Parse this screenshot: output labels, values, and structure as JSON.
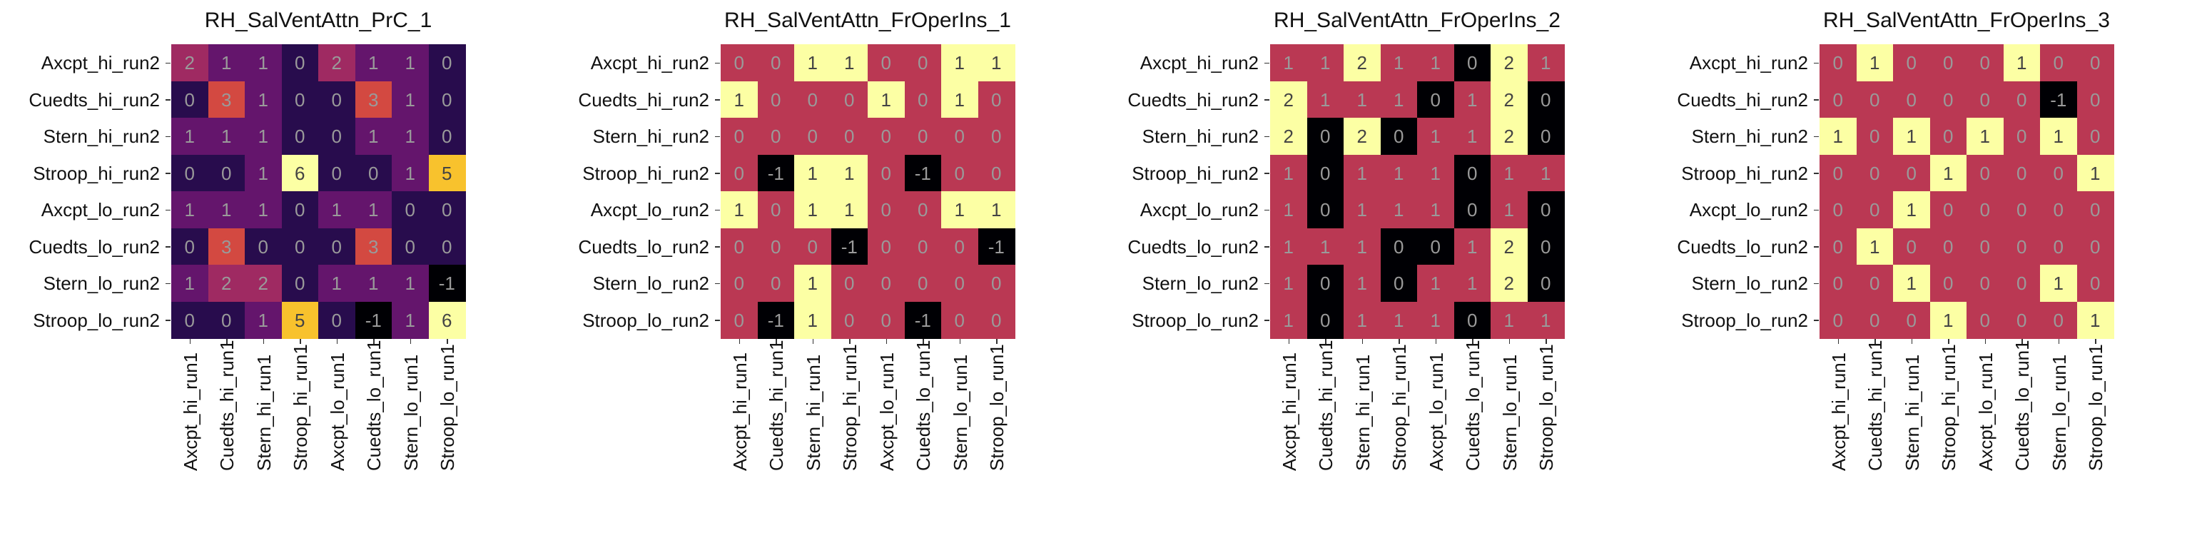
{
  "chart_data": [
    {
      "type": "heatmap",
      "title": "RH_SalVentAttn_PrC_1",
      "rows": [
        "Axcpt_hi_run2",
        "Cuedts_hi_run2",
        "Stern_hi_run2",
        "Stroop_hi_run2",
        "Axcpt_lo_run2",
        "Cuedts_lo_run2",
        "Stern_lo_run2",
        "Stroop_lo_run2"
      ],
      "cols": [
        "Axcpt_hi_run1",
        "Cuedts_hi_run1",
        "Stern_hi_run1",
        "Stroop_hi_run1",
        "Axcpt_lo_run1",
        "Cuedts_lo_run1",
        "Stern_lo_run1",
        "Stroop_lo_run1"
      ],
      "values": [
        [
          2,
          1,
          1,
          0,
          2,
          1,
          1,
          0
        ],
        [
          0,
          3,
          1,
          0,
          0,
          3,
          1,
          0
        ],
        [
          1,
          1,
          1,
          0,
          0,
          1,
          1,
          0
        ],
        [
          0,
          0,
          1,
          6,
          0,
          0,
          1,
          5
        ],
        [
          1,
          1,
          1,
          0,
          1,
          1,
          0,
          0
        ],
        [
          0,
          3,
          0,
          0,
          0,
          3,
          0,
          0
        ],
        [
          1,
          2,
          2,
          0,
          1,
          1,
          1,
          -1
        ],
        [
          0,
          0,
          1,
          5,
          0,
          -1,
          1,
          6
        ]
      ],
      "vmin": -1,
      "vmax": 6
    },
    {
      "type": "heatmap",
      "title": "RH_SalVentAttn_FrOperIns_1",
      "rows": [
        "Axcpt_hi_run2",
        "Cuedts_hi_run2",
        "Stern_hi_run2",
        "Stroop_hi_run2",
        "Axcpt_lo_run2",
        "Cuedts_lo_run2",
        "Stern_lo_run2",
        "Stroop_lo_run2"
      ],
      "cols": [
        "Axcpt_hi_run1",
        "Cuedts_hi_run1",
        "Stern_hi_run1",
        "Stroop_hi_run1",
        "Axcpt_lo_run1",
        "Cuedts_lo_run1",
        "Stern_lo_run1",
        "Stroop_lo_run1"
      ],
      "values": [
        [
          0,
          0,
          1,
          1,
          0,
          0,
          1,
          1
        ],
        [
          1,
          0,
          0,
          0,
          1,
          0,
          1,
          0
        ],
        [
          0,
          0,
          0,
          0,
          0,
          0,
          0,
          0
        ],
        [
          0,
          -1,
          1,
          1,
          0,
          -1,
          0,
          0
        ],
        [
          1,
          0,
          1,
          1,
          0,
          0,
          1,
          1
        ],
        [
          0,
          0,
          0,
          -1,
          0,
          0,
          0,
          -1
        ],
        [
          0,
          0,
          1,
          0,
          0,
          0,
          0,
          0
        ],
        [
          0,
          -1,
          1,
          0,
          0,
          -1,
          0,
          0
        ]
      ],
      "vmin": -1,
      "vmax": 1
    },
    {
      "type": "heatmap",
      "title": "RH_SalVentAttn_FrOperIns_2",
      "rows": [
        "Axcpt_hi_run2",
        "Cuedts_hi_run2",
        "Stern_hi_run2",
        "Stroop_hi_run2",
        "Axcpt_lo_run2",
        "Cuedts_lo_run2",
        "Stern_lo_run2",
        "Stroop_lo_run2"
      ],
      "cols": [
        "Axcpt_hi_run1",
        "Cuedts_hi_run1",
        "Stern_hi_run1",
        "Stroop_hi_run1",
        "Axcpt_lo_run1",
        "Cuedts_lo_run1",
        "Stern_lo_run1",
        "Stroop_lo_run1"
      ],
      "values": [
        [
          1,
          1,
          2,
          1,
          1,
          0,
          2,
          1
        ],
        [
          2,
          1,
          1,
          1,
          0,
          1,
          2,
          0
        ],
        [
          2,
          0,
          2,
          0,
          1,
          1,
          2,
          0
        ],
        [
          1,
          0,
          1,
          1,
          1,
          0,
          1,
          1
        ],
        [
          1,
          0,
          1,
          1,
          1,
          0,
          1,
          0
        ],
        [
          1,
          1,
          1,
          0,
          0,
          1,
          2,
          0
        ],
        [
          1,
          0,
          1,
          0,
          1,
          1,
          2,
          0
        ],
        [
          1,
          0,
          1,
          1,
          1,
          0,
          1,
          1
        ]
      ],
      "vmin": 0,
      "vmax": 2
    },
    {
      "type": "heatmap",
      "title": "RH_SalVentAttn_FrOperIns_3",
      "rows": [
        "Axcpt_hi_run2",
        "Cuedts_hi_run2",
        "Stern_hi_run2",
        "Stroop_hi_run2",
        "Axcpt_lo_run2",
        "Cuedts_lo_run2",
        "Stern_lo_run2",
        "Stroop_lo_run2"
      ],
      "cols": [
        "Axcpt_hi_run1",
        "Cuedts_hi_run1",
        "Stern_hi_run1",
        "Stroop_hi_run1",
        "Axcpt_lo_run1",
        "Cuedts_lo_run1",
        "Stern_lo_run1",
        "Stroop_lo_run1"
      ],
      "values": [
        [
          0,
          1,
          0,
          0,
          0,
          1,
          0,
          0
        ],
        [
          0,
          0,
          0,
          0,
          0,
          0,
          -1,
          0
        ],
        [
          1,
          0,
          1,
          0,
          1,
          0,
          1,
          0
        ],
        [
          0,
          0,
          0,
          1,
          0,
          0,
          0,
          1
        ],
        [
          0,
          0,
          1,
          0,
          0,
          0,
          0,
          0
        ],
        [
          0,
          1,
          0,
          0,
          0,
          0,
          0,
          0
        ],
        [
          0,
          0,
          1,
          0,
          0,
          0,
          1,
          0
        ],
        [
          0,
          0,
          0,
          1,
          0,
          0,
          0,
          1
        ]
      ],
      "vmin": -1,
      "vmax": 1
    }
  ],
  "colormap": [
    "#000004",
    "#1b0c41",
    "#4a0c6b",
    "#781c6d",
    "#a52c60",
    "#cf4446",
    "#ed6925",
    "#fb9b06",
    "#f7d13d",
    "#fcffa4"
  ]
}
